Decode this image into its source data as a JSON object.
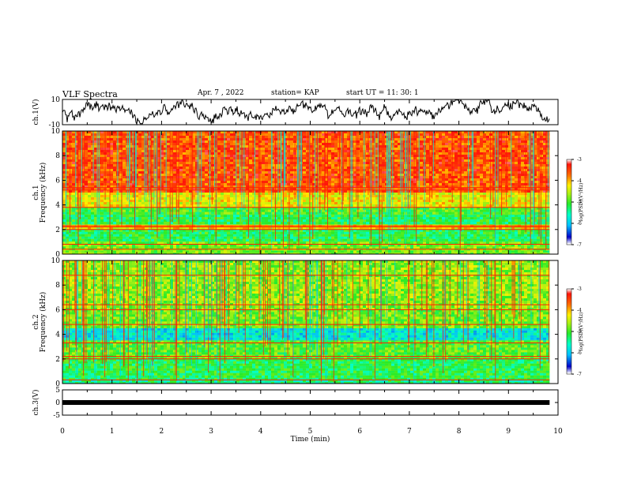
{
  "header": {
    "title": "VLF Spectra",
    "date": "Apr. 7 , 2022",
    "station": "station= KAP",
    "start": "start UT = 11: 30: 1"
  },
  "chart_data": [
    {
      "type": "line",
      "name": "ch1-waveform",
      "ylabel": "ch.1(V)",
      "yticks": [
        "10",
        "-10"
      ],
      "ylim": [
        -10,
        10
      ],
      "xlim": [
        0,
        10
      ]
    },
    {
      "type": "heatmap",
      "name": "ch1-spectrogram",
      "ylabel": "ch.1\nFrequency (kHz)",
      "yticks": [
        "0",
        "2",
        "4",
        "6",
        "8",
        "10"
      ],
      "ylim": [
        0,
        10
      ],
      "xlim": [
        0,
        10
      ],
      "data_extent_min": 9.83,
      "colorbar": {
        "ticks": [
          "-3",
          "-4",
          "-5",
          "-6",
          "-7"
        ],
        "label": "log(PSD)(V²/Hz)",
        "range": [
          -7,
          -3
        ]
      },
      "bands": [
        {
          "f_min": 0.0,
          "f_max": 0.3,
          "level": 0.55
        },
        {
          "f_min": 0.3,
          "f_max": 1.0,
          "level": 0.55
        },
        {
          "f_min": 1.0,
          "f_max": 2.0,
          "level": 0.45
        },
        {
          "f_min": 2.0,
          "f_max": 2.4,
          "level": 0.7
        },
        {
          "f_min": 2.4,
          "f_max": 3.2,
          "level": 0.45
        },
        {
          "f_min": 3.2,
          "f_max": 3.8,
          "level": 0.5
        },
        {
          "f_min": 3.8,
          "f_max": 5.0,
          "level": 0.68
        },
        {
          "f_min": 5.0,
          "f_max": 10.0,
          "level": 0.86
        }
      ]
    },
    {
      "type": "heatmap",
      "name": "ch2-spectrogram",
      "ylabel": "ch.2\nFrequency (kHz)",
      "yticks": [
        "0",
        "2",
        "4",
        "6",
        "8",
        "10"
      ],
      "ylim": [
        0,
        10
      ],
      "xlim": [
        0,
        10
      ],
      "data_extent_min": 9.83,
      "colorbar": {
        "ticks": [
          "-3",
          "-4",
          "-5",
          "-6",
          "-7"
        ],
        "label": "log(PSD)(V²/Hz)",
        "range": [
          -7,
          -3
        ]
      },
      "bands": [
        {
          "f_min": 0.0,
          "f_max": 0.3,
          "level": 0.4
        },
        {
          "f_min": 0.3,
          "f_max": 2.0,
          "level": 0.45
        },
        {
          "f_min": 2.0,
          "f_max": 3.5,
          "level": 0.52
        },
        {
          "f_min": 3.5,
          "f_max": 4.5,
          "level": 0.3
        },
        {
          "f_min": 4.5,
          "f_max": 6.0,
          "level": 0.55
        },
        {
          "f_min": 6.0,
          "f_max": 10.0,
          "level": 0.58
        }
      ]
    },
    {
      "type": "line",
      "name": "ch3-waveform",
      "ylabel": "ch.3(V)",
      "yticks": [
        "5",
        "0",
        "-5"
      ],
      "ylim": [
        -5,
        5
      ],
      "xlim": [
        0,
        10
      ],
      "values": [
        0.0,
        0.0
      ]
    }
  ],
  "x_axis": {
    "label": "Time (min)",
    "ticks": [
      "0",
      "1",
      "2",
      "3",
      "4",
      "5",
      "6",
      "7",
      "8",
      "9",
      "10"
    ]
  },
  "colors": {
    "red": "#ff2200",
    "yellow": "#ffee00",
    "green": "#00ee00",
    "cyan": "#00ffff",
    "blue": "#0000ff",
    "black": "#000000"
  }
}
